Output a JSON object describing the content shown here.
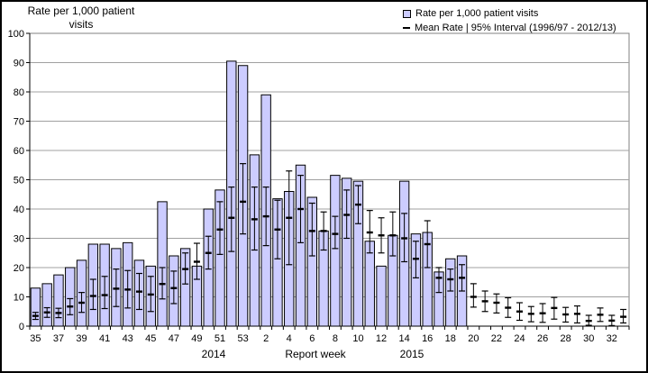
{
  "title": {
    "y_axis_line1": "Rate per 1,000  patient",
    "y_axis_line2": "visits"
  },
  "legend": {
    "items": [
      {
        "marker": "bar-swatch",
        "label": "Rate per 1,000 patient visits"
      },
      {
        "marker": "mean-dash",
        "label": "Mean Rate | 95% Interval (1996/97 - 2012/13)"
      }
    ]
  },
  "colors": {
    "bar_fill": "#ccccff",
    "bar_border": "#000000",
    "errorbar": "#000000",
    "gridline": "#a0a0a0",
    "plot_border": "#808080",
    "axis": "#000000",
    "text": "#000000",
    "frame": "#000000",
    "background": "#ffffff"
  },
  "chart_data": {
    "type": "bar",
    "title": "",
    "ylabel": "Rate per 1,000 patient visits",
    "xlabel": "Report week",
    "ylim": [
      0,
      100
    ],
    "y_tick_step": 10,
    "grid": true,
    "legend_position": "top-right",
    "year_labels": [
      {
        "text": "2014",
        "center_x_week_index": 15.5
      },
      {
        "text": "2015",
        "center_x_week_index": 32.8
      }
    ],
    "series_note": "bars = weekly rate per 1,000 patient visits (2014 w35 - 2015 w19); error bars = historical mean rate with 95% interval (1996/97 - 2012/13), weeks 20-33 of 2015 have no bar, only mean/interval",
    "points": [
      {
        "year": 2014,
        "week": 35,
        "rate": 13,
        "mean": 3.5,
        "lo": 2.3,
        "hi": 4.7
      },
      {
        "year": 2014,
        "week": 36,
        "rate": 14.5,
        "mean": 4.7,
        "lo": 3.0,
        "hi": 6.3
      },
      {
        "year": 2014,
        "week": 37,
        "rate": 17.5,
        "mean": 4.5,
        "lo": 2.9,
        "hi": 6.1
      },
      {
        "year": 2014,
        "week": 38,
        "rate": 20,
        "mean": 6.7,
        "lo": 3.9,
        "hi": 9.4
      },
      {
        "year": 2014,
        "week": 39,
        "rate": 22.5,
        "mean": 8.0,
        "lo": 4.7,
        "hi": 11.5
      },
      {
        "year": 2014,
        "week": 40,
        "rate": 28,
        "mean": 10.3,
        "lo": 5.7,
        "hi": 16.0
      },
      {
        "year": 2014,
        "week": 41,
        "rate": 28,
        "mean": 10.6,
        "lo": 6.0,
        "hi": 17.0
      },
      {
        "year": 2014,
        "week": 42,
        "rate": 26.5,
        "mean": 12.8,
        "lo": 6.7,
        "hi": 19.5
      },
      {
        "year": 2014,
        "week": 43,
        "rate": 28.5,
        "mean": 12.5,
        "lo": 6.2,
        "hi": 19.0
      },
      {
        "year": 2014,
        "week": 44,
        "rate": 22.5,
        "mean": 11.8,
        "lo": 5.7,
        "hi": 18.0
      },
      {
        "year": 2014,
        "week": 45,
        "rate": 20.5,
        "mean": 10.8,
        "lo": 5.0,
        "hi": 17.0
      },
      {
        "year": 2014,
        "week": 46,
        "rate": 42.5,
        "mean": 14.4,
        "lo": 9.3,
        "hi": 20.0
      },
      {
        "year": 2014,
        "week": 47,
        "rate": 24,
        "mean": 13.0,
        "lo": 7.7,
        "hi": 18.8
      },
      {
        "year": 2014,
        "week": 48,
        "rate": 26.5,
        "mean": 19.5,
        "lo": 14.4,
        "hi": 25.0
      },
      {
        "year": 2014,
        "week": 49,
        "rate": 20.5,
        "mean": 22.0,
        "lo": 16.0,
        "hi": 28.3
      },
      {
        "year": 2014,
        "week": 50,
        "rate": 40,
        "mean": 25.0,
        "lo": 19.5,
        "hi": 30.7
      },
      {
        "year": 2014,
        "week": 51,
        "rate": 46.5,
        "mean": 33.0,
        "lo": 24.5,
        "hi": 42.5
      },
      {
        "year": 2014,
        "week": 52,
        "rate": 90.5,
        "mean": 37.0,
        "lo": 25.5,
        "hi": 47.5
      },
      {
        "year": 2014,
        "week": 53,
        "rate": 89,
        "mean": 42.5,
        "lo": 31.5,
        "hi": 55.5
      },
      {
        "year": 2015,
        "week": 1,
        "rate": 58.5,
        "mean": 36.5,
        "lo": 26.0,
        "hi": 47.5
      },
      {
        "year": 2015,
        "week": 2,
        "rate": 79,
        "mean": 37.5,
        "lo": 27.5,
        "hi": 47.5
      },
      {
        "year": 2015,
        "week": 3,
        "rate": 43.5,
        "mean": 33.0,
        "lo": 23.0,
        "hi": 43.0
      },
      {
        "year": 2015,
        "week": 4,
        "rate": 46,
        "mean": 37.0,
        "lo": 21.0,
        "hi": 53.0
      },
      {
        "year": 2015,
        "week": 5,
        "rate": 55,
        "mean": 40.0,
        "lo": 28.5,
        "hi": 51.5
      },
      {
        "year": 2015,
        "week": 6,
        "rate": 44,
        "mean": 32.5,
        "lo": 24.0,
        "hi": 42.0
      },
      {
        "year": 2015,
        "week": 7,
        "rate": 32.5,
        "mean": 32.5,
        "lo": 26.0,
        "hi": 39.0
      },
      {
        "year": 2015,
        "week": 8,
        "rate": 51.5,
        "mean": 31.5,
        "lo": 26.5,
        "hi": 37.5
      },
      {
        "year": 2015,
        "week": 9,
        "rate": 50.5,
        "mean": 38.0,
        "lo": 30.0,
        "hi": 46.5
      },
      {
        "year": 2015,
        "week": 10,
        "rate": 49.5,
        "mean": 41.5,
        "lo": 35.0,
        "hi": 48.0
      },
      {
        "year": 2015,
        "week": 11,
        "rate": 29,
        "mean": 32.0,
        "lo": 25.0,
        "hi": 39.5
      },
      {
        "year": 2015,
        "week": 12,
        "rate": 20.5,
        "mean": 31.0,
        "lo": 25.0,
        "hi": 37.0
      },
      {
        "year": 2015,
        "week": 13,
        "rate": 31,
        "mean": 31.0,
        "lo": 24.0,
        "hi": 39.0
      },
      {
        "year": 2015,
        "week": 14,
        "rate": 49.5,
        "mean": 30.0,
        "lo": 22.0,
        "hi": 38.5
      },
      {
        "year": 2015,
        "week": 15,
        "rate": 31.5,
        "mean": 23.0,
        "lo": 16.5,
        "hi": 29.0
      },
      {
        "year": 2015,
        "week": 16,
        "rate": 32,
        "mean": 28.0,
        "lo": 20.0,
        "hi": 36.0
      },
      {
        "year": 2015,
        "week": 17,
        "rate": 18.5,
        "mean": 16.5,
        "lo": 11.5,
        "hi": 20.0
      },
      {
        "year": 2015,
        "week": 18,
        "rate": 23,
        "mean": 16.0,
        "lo": 12.0,
        "hi": 19.5
      },
      {
        "year": 2015,
        "week": 19,
        "rate": 24,
        "mean": 16.5,
        "lo": 12.0,
        "hi": 21.0
      },
      {
        "year": 2015,
        "week": 20,
        "rate": null,
        "mean": 10.0,
        "lo": 6.5,
        "hi": 14.5
      },
      {
        "year": 2015,
        "week": 21,
        "rate": null,
        "mean": 8.5,
        "lo": 5.0,
        "hi": 12.0
      },
      {
        "year": 2015,
        "week": 22,
        "rate": null,
        "mean": 8.0,
        "lo": 4.5,
        "hi": 11.0
      },
      {
        "year": 2015,
        "week": 23,
        "rate": null,
        "mean": 6.3,
        "lo": 3.0,
        "hi": 9.7
      },
      {
        "year": 2015,
        "week": 24,
        "rate": null,
        "mean": 5.0,
        "lo": 2.0,
        "hi": 8.0
      },
      {
        "year": 2015,
        "week": 25,
        "rate": null,
        "mean": 4.2,
        "lo": 1.5,
        "hi": 6.7
      },
      {
        "year": 2015,
        "week": 26,
        "rate": null,
        "mean": 4.4,
        "lo": 1.3,
        "hi": 7.7
      },
      {
        "year": 2015,
        "week": 27,
        "rate": null,
        "mean": 6.2,
        "lo": 2.4,
        "hi": 9.8
      },
      {
        "year": 2015,
        "week": 28,
        "rate": null,
        "mean": 4.0,
        "lo": 1.4,
        "hi": 6.4
      },
      {
        "year": 2015,
        "week": 29,
        "rate": null,
        "mean": 4.2,
        "lo": 1.1,
        "hi": 6.9
      },
      {
        "year": 2015,
        "week": 30,
        "rate": null,
        "mean": 1.8,
        "lo": 0.3,
        "hi": 3.7
      },
      {
        "year": 2015,
        "week": 31,
        "rate": null,
        "mean": 3.9,
        "lo": 1.6,
        "hi": 6.2
      },
      {
        "year": 2015,
        "week": 32,
        "rate": null,
        "mean": 1.9,
        "lo": 0.2,
        "hi": 3.7
      },
      {
        "year": 2015,
        "week": 33,
        "rate": null,
        "mean": 3.2,
        "lo": 1.1,
        "hi": 5.7
      }
    ]
  }
}
